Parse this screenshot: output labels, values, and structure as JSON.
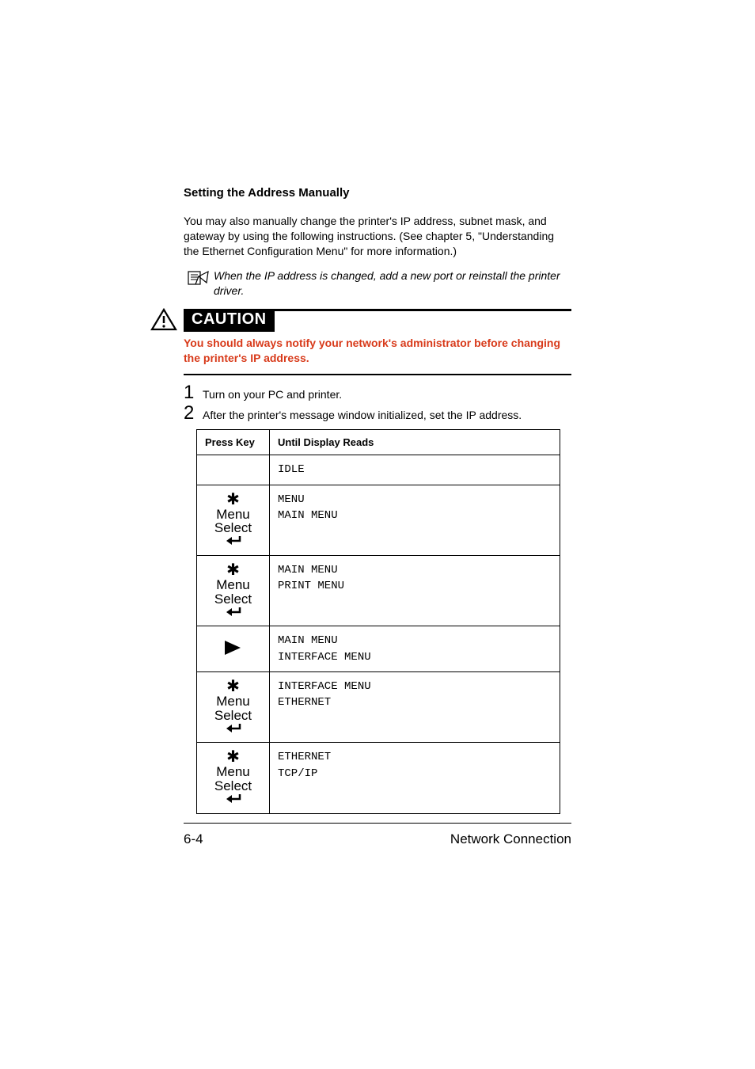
{
  "heading": "Setting the Address Manually",
  "intro": "You may also manually change the printer's IP address, subnet mask, and gateway by using the following instructions. (See chapter 5, \"Understanding the Ethernet Configuration Menu\" for more information.)",
  "note": "When the IP address is changed, add a new port or reinstall the printer driver.",
  "caution_label": "CAUTION",
  "caution_text": "You should always notify your network's administrator before changing the printer's IP address.",
  "caution_color": "#d83a1a",
  "steps": [
    {
      "num": "1",
      "text": "Turn on your PC and printer."
    },
    {
      "num": "2",
      "text": "After the printer's message window initialized, set the IP address."
    }
  ],
  "table": {
    "headers": [
      "Press Key",
      "Until Display Reads"
    ],
    "rows": [
      {
        "key_type": "blank",
        "display": "IDLE"
      },
      {
        "key_type": "menu-select",
        "display": "MENU\nMAIN MENU"
      },
      {
        "key_type": "menu-select",
        "display": "MAIN MENU\nPRINT MENU"
      },
      {
        "key_type": "right-arrow",
        "display": "MAIN MENU\nINTERFACE MENU"
      },
      {
        "key_type": "menu-select",
        "display": "INTERFACE MENU\nETHERNET"
      },
      {
        "key_type": "menu-select",
        "display": "ETHERNET\nTCP/IP"
      }
    ],
    "menu_label_1": "Menu",
    "menu_label_2": "Select"
  },
  "footer": {
    "left": "6-4",
    "right": "Network Connection"
  }
}
